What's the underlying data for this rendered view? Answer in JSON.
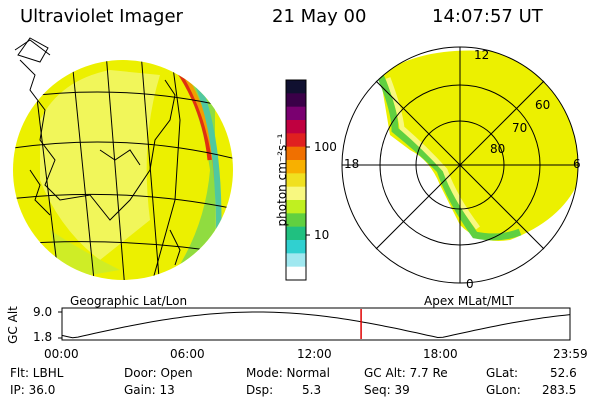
{
  "header": {
    "title": "Ultraviolet Imager",
    "date": "21 May 00",
    "time": "14:07:57 UT"
  },
  "colorbar": {
    "unit_label": "photon cm⁻²s⁻¹",
    "tick_100": "100",
    "tick_10": "10",
    "colors": [
      "#101030",
      "#3a0048",
      "#7a0070",
      "#c00040",
      "#e02020",
      "#f07000",
      "#f8b000",
      "#f0e020",
      "#f8f880",
      "#c0f020",
      "#60d040",
      "#20c080",
      "#30d0d0",
      "#a0e8f0",
      "#ffffff"
    ]
  },
  "polar_plot": {
    "mlt_labels": {
      "top": "12",
      "left": "18",
      "right": "6",
      "bottom": "0"
    },
    "lat_labels": [
      "60",
      "70",
      "80"
    ]
  },
  "altitude_plot": {
    "left_title": "Geographic Lat/Lon",
    "right_title": "Apex MLat/MLT",
    "ylabel": "GC Alt",
    "y_max": "9.0",
    "y_min": "1.8",
    "x_ticks": [
      "00:00",
      "06:00",
      "12:00",
      "18:00",
      "23:59"
    ],
    "current_time_marker_hours": 14.13,
    "marker_color": "#e00000"
  },
  "status": {
    "flt": "Flt: LBHL",
    "ip": "IP: 36.0",
    "door": "Door: Open",
    "gain": "Gain: 13",
    "mode": "Mode: Normal",
    "dsp_label": "Dsp:",
    "dsp_value": "5.3",
    "gc_alt": "GC Alt: 7.7 Re",
    "seq": "Seq: 39",
    "glat_label": "GLat:",
    "glat_value": "52.6",
    "glon_label": "GLon:",
    "glon_value": "283.5"
  }
}
